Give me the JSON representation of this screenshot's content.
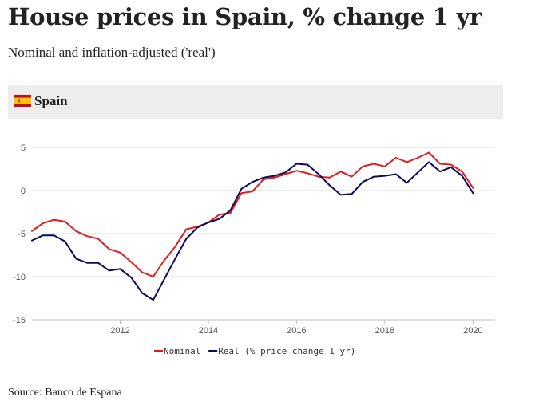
{
  "header": {
    "title": "House prices in Spain, % change 1 yr",
    "subtitle": "Nominal and inflation-adjusted ('real')"
  },
  "panel": {
    "label": "Spain",
    "flag_colors": {
      "red": "#c60b1e",
      "yellow": "#ffc400"
    }
  },
  "source": "Source: Banco de Espana",
  "chart_data": {
    "type": "line",
    "title": "House prices in Spain, % change 1 yr",
    "xlabel": "",
    "ylabel": "",
    "xlim": [
      2010.0,
      2020.5
    ],
    "ylim": [
      -15,
      5
    ],
    "x_ticks": [
      2012,
      2014,
      2016,
      2018,
      2020
    ],
    "y_ticks": [
      5,
      0,
      -5,
      -10,
      -15
    ],
    "grid": true,
    "legend_position": "bottom-center",
    "x": [
      2010.0,
      2010.25,
      2010.5,
      2010.75,
      2011.0,
      2011.25,
      2011.5,
      2011.75,
      2012.0,
      2012.25,
      2012.5,
      2012.75,
      2013.0,
      2013.25,
      2013.5,
      2013.75,
      2014.0,
      2014.25,
      2014.5,
      2014.75,
      2015.0,
      2015.25,
      2015.5,
      2015.75,
      2016.0,
      2016.25,
      2016.5,
      2016.75,
      2017.0,
      2017.25,
      2017.5,
      2017.75,
      2018.0,
      2018.25,
      2018.5,
      2018.75,
      2019.0,
      2019.25,
      2019.5,
      2019.75,
      2020.0
    ],
    "series": [
      {
        "name": "Nominal",
        "color": "#e41a1c",
        "values": [
          -4.7,
          -3.8,
          -3.4,
          -3.6,
          -4.7,
          -5.3,
          -5.6,
          -6.8,
          -7.2,
          -8.3,
          -9.5,
          -10.0,
          -8.1,
          -6.5,
          -4.5,
          -4.2,
          -3.7,
          -2.8,
          -2.6,
          -0.3,
          -0.1,
          1.3,
          1.5,
          1.9,
          2.3,
          2.0,
          1.6,
          1.5,
          2.2,
          1.6,
          2.8,
          3.1,
          2.8,
          3.8,
          3.3,
          3.8,
          4.4,
          3.1,
          3.0,
          2.2,
          0.3
        ]
      },
      {
        "name": "Real (% price change 1 yr)",
        "color": "#0a0a5a",
        "values": [
          -5.8,
          -5.2,
          -5.2,
          -5.9,
          -7.9,
          -8.4,
          -8.4,
          -9.3,
          -9.1,
          -10.1,
          -11.9,
          -12.7,
          -10.3,
          -7.9,
          -5.6,
          -4.3,
          -3.7,
          -3.3,
          -2.3,
          0.2,
          1.0,
          1.5,
          1.7,
          2.1,
          3.1,
          3.0,
          1.9,
          0.6,
          -0.5,
          -0.4,
          1.0,
          1.6,
          1.7,
          1.9,
          0.9,
          2.1,
          3.3,
          2.2,
          2.7,
          1.7,
          -0.3
        ]
      }
    ]
  }
}
